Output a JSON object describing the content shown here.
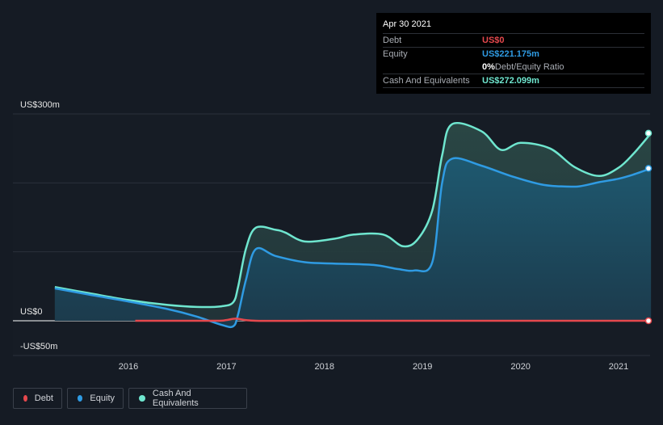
{
  "tooltip": {
    "date": "Apr 30 2021",
    "rows": [
      {
        "label": "Debt",
        "value": "US$0",
        "color": "#e5484d"
      },
      {
        "label": "Equity",
        "value": "US$221.175m",
        "color": "#2f9be3"
      },
      {
        "label": "",
        "value": "0%",
        "suffix": " Debt/Equity Ratio",
        "color": "#ffffff"
      },
      {
        "label": "Cash And Equivalents",
        "value": "US$272.099m",
        "color": "#6fe6cf"
      }
    ]
  },
  "legend": [
    {
      "label": "Debt",
      "color": "#e5484d"
    },
    {
      "label": "Equity",
      "color": "#2f9be3"
    },
    {
      "label": "Cash And Equivalents",
      "color": "#6fe6cf"
    }
  ],
  "chart_data": {
    "type": "area",
    "y_tick_labels": [
      {
        "value": 300,
        "label": "US$300m"
      },
      {
        "value": 0,
        "label": "US$0"
      },
      {
        "value": -50,
        "label": "-US$50m"
      }
    ],
    "ylim": [
      -50,
      300
    ],
    "xlim": [
      2015.0,
      2021.33
    ],
    "x_ticks": [
      2016,
      2017,
      2018,
      2019,
      2020,
      2021
    ],
    "gridlines_y": [
      300,
      200,
      100,
      0
    ],
    "series": [
      {
        "name": "Debt",
        "color": "#e5484d",
        "x": [
          2016.07,
          2016.5,
          2016.9,
          2017.0,
          2017.1,
          2017.3,
          2018.0,
          2019.0,
          2020.0,
          2021.0,
          2021.33
        ],
        "y": [
          0,
          0,
          0,
          1,
          3,
          0,
          0,
          0,
          0,
          0,
          0
        ]
      },
      {
        "name": "Equity",
        "color": "#2f9be3",
        "x": [
          2015.25,
          2015.6,
          2016.0,
          2016.4,
          2016.7,
          2016.95,
          2017.07,
          2017.12,
          2017.2,
          2017.3,
          2017.5,
          2017.8,
          2018.1,
          2018.5,
          2018.75,
          2018.92,
          2019.1,
          2019.2,
          2019.3,
          2019.6,
          2019.9,
          2020.2,
          2020.4,
          2020.6,
          2020.8,
          2021.0,
          2021.15,
          2021.33
        ],
        "y": [
          47,
          38,
          28,
          17,
          6,
          -6,
          -8,
          10,
          60,
          104,
          94,
          85,
          83,
          81,
          75,
          73,
          85,
          200,
          235,
          225,
          210,
          198,
          195,
          195,
          201,
          206,
          212,
          221
        ]
      },
      {
        "name": "Cash And Equivalents",
        "color": "#6fe6cf",
        "x": [
          2015.25,
          2015.6,
          2016.0,
          2016.4,
          2016.7,
          2016.95,
          2017.07,
          2017.12,
          2017.2,
          2017.3,
          2017.5,
          2017.6,
          2017.8,
          2018.1,
          2018.3,
          2018.6,
          2018.8,
          2018.95,
          2019.1,
          2019.2,
          2019.3,
          2019.6,
          2019.8,
          2020.0,
          2020.3,
          2020.55,
          2020.8,
          2021.0,
          2021.15,
          2021.33
        ],
        "y": [
          49,
          40,
          30,
          23,
          20,
          21,
          27,
          50,
          105,
          135,
          132,
          128,
          115,
          119,
          125,
          125,
          108,
          118,
          160,
          240,
          285,
          275,
          248,
          258,
          250,
          223,
          210,
          222,
          242,
          272
        ]
      }
    ]
  }
}
